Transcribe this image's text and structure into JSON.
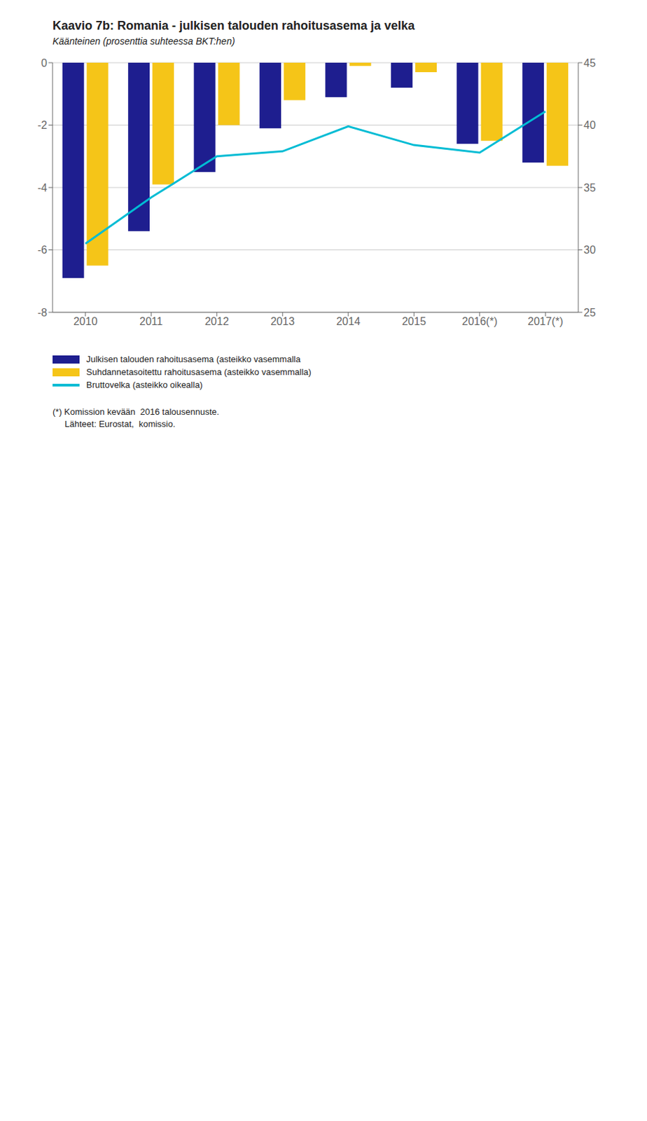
{
  "chart_data": {
    "type": "bar",
    "title": "Kaavio 7b: Romania - julkisen talouden rahoitusasema ja velka",
    "subtitle": "Käänteinen (prosenttia suhteessa BKT:hen)",
    "categories": [
      "2010",
      "2011",
      "2012",
      "2013",
      "2014",
      "2015",
      "2016(*)",
      "2017(*)"
    ],
    "series": [
      {
        "name": "Julkisen talouden rahoitusasema (asteikko vasemmalla",
        "type": "bar",
        "color": "#1e1e8f",
        "values": [
          -6.9,
          -5.4,
          -3.5,
          -2.1,
          -1.1,
          -0.8,
          -2.6,
          -3.2
        ]
      },
      {
        "name": "Suhdannetasoitettu rahoitusasema (asteikko vasemmalla)",
        "type": "bar",
        "color": "#f5c518",
        "values": [
          -6.5,
          -3.9,
          -2.0,
          -1.2,
          -0.1,
          -0.3,
          -2.5,
          -3.3
        ]
      },
      {
        "name": "Bruttovelka (asteikko oikealla)",
        "type": "line",
        "axis": "y2",
        "color": "#00bcd4",
        "values": [
          30.5,
          34.2,
          37.5,
          37.9,
          39.9,
          38.4,
          37.8,
          41.1
        ]
      }
    ],
    "ylim": [
      -8,
      0
    ],
    "yticks": [
      -8,
      -6,
      -4,
      -2,
      0
    ],
    "y2lim": [
      25,
      45
    ],
    "y2ticks": [
      25,
      30,
      35,
      40,
      45
    ],
    "grid": true,
    "legend": "bottom",
    "annotations": [
      "(*) Komission kevään  2016 talousennuste.",
      "     Lähteet: Eurostat,  komissio."
    ]
  }
}
